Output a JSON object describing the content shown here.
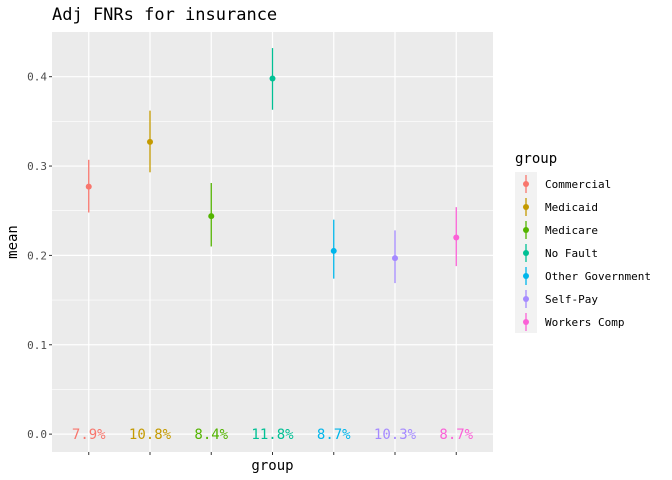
{
  "chart_data": {
    "type": "pointrange",
    "title": "Adj FNRs for insurance",
    "xlabel": "group",
    "ylabel": "mean",
    "ylim": [
      -0.02,
      0.45
    ],
    "yticks": [
      0.0,
      0.1,
      0.2,
      0.3,
      0.4
    ],
    "ytick_labels": [
      "0.0",
      "0.1",
      "0.2",
      "0.3",
      "0.4"
    ],
    "grid": true,
    "legend": {
      "title": "group",
      "position": "right"
    },
    "categories": [
      "Commercial",
      "Medicaid",
      "Medicare",
      "No Fault",
      "Other Government",
      "Self-Pay",
      "Workers Comp"
    ],
    "series": [
      {
        "name": "Commercial",
        "mean": 0.277,
        "lower": 0.248,
        "upper": 0.307,
        "label": "7.9%",
        "color": "#F8766D"
      },
      {
        "name": "Medicaid",
        "mean": 0.327,
        "lower": 0.293,
        "upper": 0.362,
        "label": "10.8%",
        "color": "#C49A00"
      },
      {
        "name": "Medicare",
        "mean": 0.244,
        "lower": 0.21,
        "upper": 0.281,
        "label": "8.4%",
        "color": "#53B400"
      },
      {
        "name": "No Fault",
        "mean": 0.398,
        "lower": 0.363,
        "upper": 0.432,
        "label": "11.8%",
        "color": "#00C094"
      },
      {
        "name": "Other Government",
        "mean": 0.205,
        "lower": 0.174,
        "upper": 0.24,
        "label": "8.7%",
        "color": "#00B6EB"
      },
      {
        "name": "Self-Pay",
        "mean": 0.197,
        "lower": 0.169,
        "upper": 0.228,
        "label": "10.3%",
        "color": "#A58AFF"
      },
      {
        "name": "Workers Comp",
        "mean": 0.22,
        "lower": 0.188,
        "upper": 0.254,
        "label": "8.7%",
        "color": "#FB61D7"
      }
    ],
    "label_y": 0.0
  }
}
